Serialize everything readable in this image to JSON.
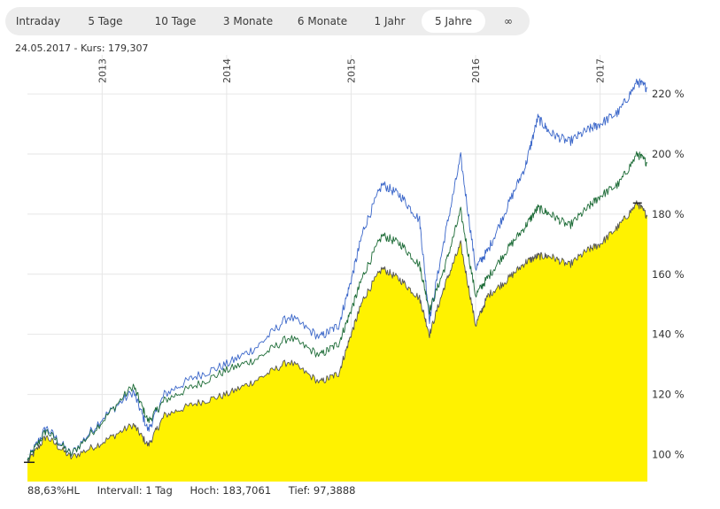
{
  "tabs": [
    {
      "label": "Intraday",
      "active": false
    },
    {
      "label": "5 Tage",
      "active": false
    },
    {
      "label": "10 Tage",
      "active": false
    },
    {
      "label": "3 Monate",
      "active": false
    },
    {
      "label": "6 Monate",
      "active": false
    },
    {
      "label": "1 Jahr",
      "active": false
    },
    {
      "label": "5 Jahre",
      "active": true
    },
    {
      "label": "∞",
      "active": false
    }
  ],
  "info": {
    "date": "24.05.2017",
    "separator": "-",
    "kurs": "Kurs: 179,307"
  },
  "footer": {
    "hl": "88,63%HL",
    "intervall": "Intervall: 1 Tag",
    "hoch": "Hoch: 183,7061",
    "tief": "Tief: 97,3888"
  },
  "chart_data": {
    "type": "area",
    "x_tick_labels": [
      "2013",
      "2014",
      "2015",
      "2016",
      "2017"
    ],
    "y_tick_labels": [
      "100 %",
      "120 %",
      "140 %",
      "160 %",
      "180 %",
      "200 %",
      "220 %"
    ],
    "x": [
      2012.4,
      2012.55,
      2012.75,
      2013.0,
      2013.25,
      2013.37,
      2013.5,
      2013.75,
      2014.0,
      2014.25,
      2014.5,
      2014.75,
      2014.9,
      2015.0,
      2015.1,
      2015.25,
      2015.4,
      2015.55,
      2015.63,
      2015.75,
      2015.88,
      2016.0,
      2016.1,
      2016.25,
      2016.4,
      2016.5,
      2016.6,
      2016.75,
      2016.9,
      2017.0,
      2017.15,
      2017.3,
      2017.38
    ],
    "xlim": [
      2012.4,
      2017.38
    ],
    "ylim": [
      91,
      233
    ],
    "series": [
      {
        "values": [
          98,
          109,
          100,
          112,
          121,
          108,
          120,
          126,
          130,
          136,
          146,
          139,
          143,
          158,
          175,
          190,
          186,
          178,
          145,
          172,
          199,
          162,
          168,
          182,
          196,
          212,
          207,
          204,
          208,
          210,
          214,
          224,
          222
        ],
        "color": "#3a66c9"
      },
      {
        "values": [
          98,
          108,
          100,
          111,
          123,
          111,
          118,
          123,
          128,
          132,
          139,
          133,
          137,
          148,
          160,
          173,
          170,
          163,
          148,
          162,
          181,
          153,
          159,
          168,
          176,
          182,
          180,
          176,
          182,
          186,
          190,
          200,
          197
        ],
        "color": "#1c6b36"
      },
      {
        "values": [
          97.4,
          106,
          99,
          104,
          110,
          103,
          113,
          117,
          120,
          125,
          131,
          124,
          127,
          140,
          152,
          162,
          158,
          152,
          140,
          156,
          170,
          143,
          153,
          158,
          164,
          166,
          166,
          163,
          168,
          170,
          176,
          183.7,
          179.3
        ],
        "color": "#555555",
        "fill": "#fff200"
      }
    ],
    "grid": true
  }
}
